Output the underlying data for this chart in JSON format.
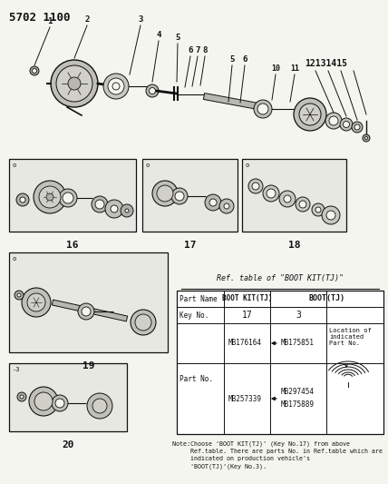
{
  "bg_color": "#f5f5f0",
  "fig_width": 4.28,
  "fig_height": 5.33,
  "dpi": 100,
  "title": "5702 1100",
  "table_title": "Ref. table of \"BOOT KIT(TJ)\"",
  "note_text": "Note:Choose 'BOOT KIT(TJ)' (Key No.17) from above\n     Ref.table. There are parts No. in Ref.table which are\n     indicated on production vehicle's\n     'BOOT(TJ)'(Key No.3).",
  "lc": "#111111",
  "tc": "#111111",
  "box_fc": "#e8e8e3"
}
